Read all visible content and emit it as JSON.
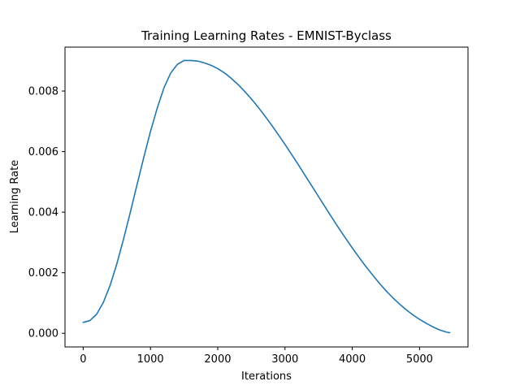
{
  "chart_data": {
    "type": "line",
    "title": "Training Learning Rates - EMNIST-Byclass",
    "xlabel": "Iterations",
    "ylabel": "Learning Rate",
    "xlim": [
      -270,
      5720
    ],
    "ylim": [
      -0.00045,
      0.00945
    ],
    "xticks": [
      0,
      1000,
      2000,
      3000,
      4000,
      5000
    ],
    "xtick_labels": [
      "0",
      "1000",
      "2000",
      "3000",
      "4000",
      "5000"
    ],
    "yticks": [
      0.0,
      0.002,
      0.004,
      0.006,
      0.008
    ],
    "ytick_labels": [
      "0.000",
      "0.002",
      "0.004",
      "0.006",
      "0.008"
    ],
    "grid": false,
    "legend": "none",
    "series": [
      {
        "color": "#1f77b4",
        "x": [
          0,
          100,
          200,
          300,
          400,
          500,
          600,
          700,
          800,
          900,
          1000,
          1100,
          1200,
          1300,
          1400,
          1500,
          1600,
          1650,
          1700,
          1800,
          1900,
          2000,
          2100,
          2200,
          2300,
          2400,
          2500,
          2600,
          2700,
          2800,
          2900,
          3000,
          3100,
          3200,
          3300,
          3400,
          3500,
          3600,
          3700,
          3800,
          3900,
          4000,
          4100,
          4200,
          4300,
          4400,
          4500,
          4600,
          4700,
          4800,
          4900,
          5000,
          5100,
          5200,
          5300,
          5400,
          5450
        ],
        "y": [
          0.00036,
          0.00042,
          0.00063,
          0.00102,
          0.00158,
          0.00229,
          0.00311,
          0.00399,
          0.0049,
          0.0058,
          0.00666,
          0.00743,
          0.0081,
          0.00859,
          0.00888,
          0.00901,
          0.00901,
          0.009,
          0.00899,
          0.00893,
          0.00885,
          0.00874,
          0.0086,
          0.00842,
          0.00822,
          0.00799,
          0.00774,
          0.00747,
          0.00718,
          0.00688,
          0.00656,
          0.00624,
          0.0059,
          0.00556,
          0.00521,
          0.00486,
          0.00451,
          0.00416,
          0.00381,
          0.00347,
          0.00314,
          0.00282,
          0.00251,
          0.00221,
          0.00193,
          0.00166,
          0.00141,
          0.00118,
          0.00097,
          0.00078,
          0.00061,
          0.00046,
          0.00033,
          0.00021,
          0.00011,
          4e-05,
          2e-05
        ]
      }
    ]
  }
}
